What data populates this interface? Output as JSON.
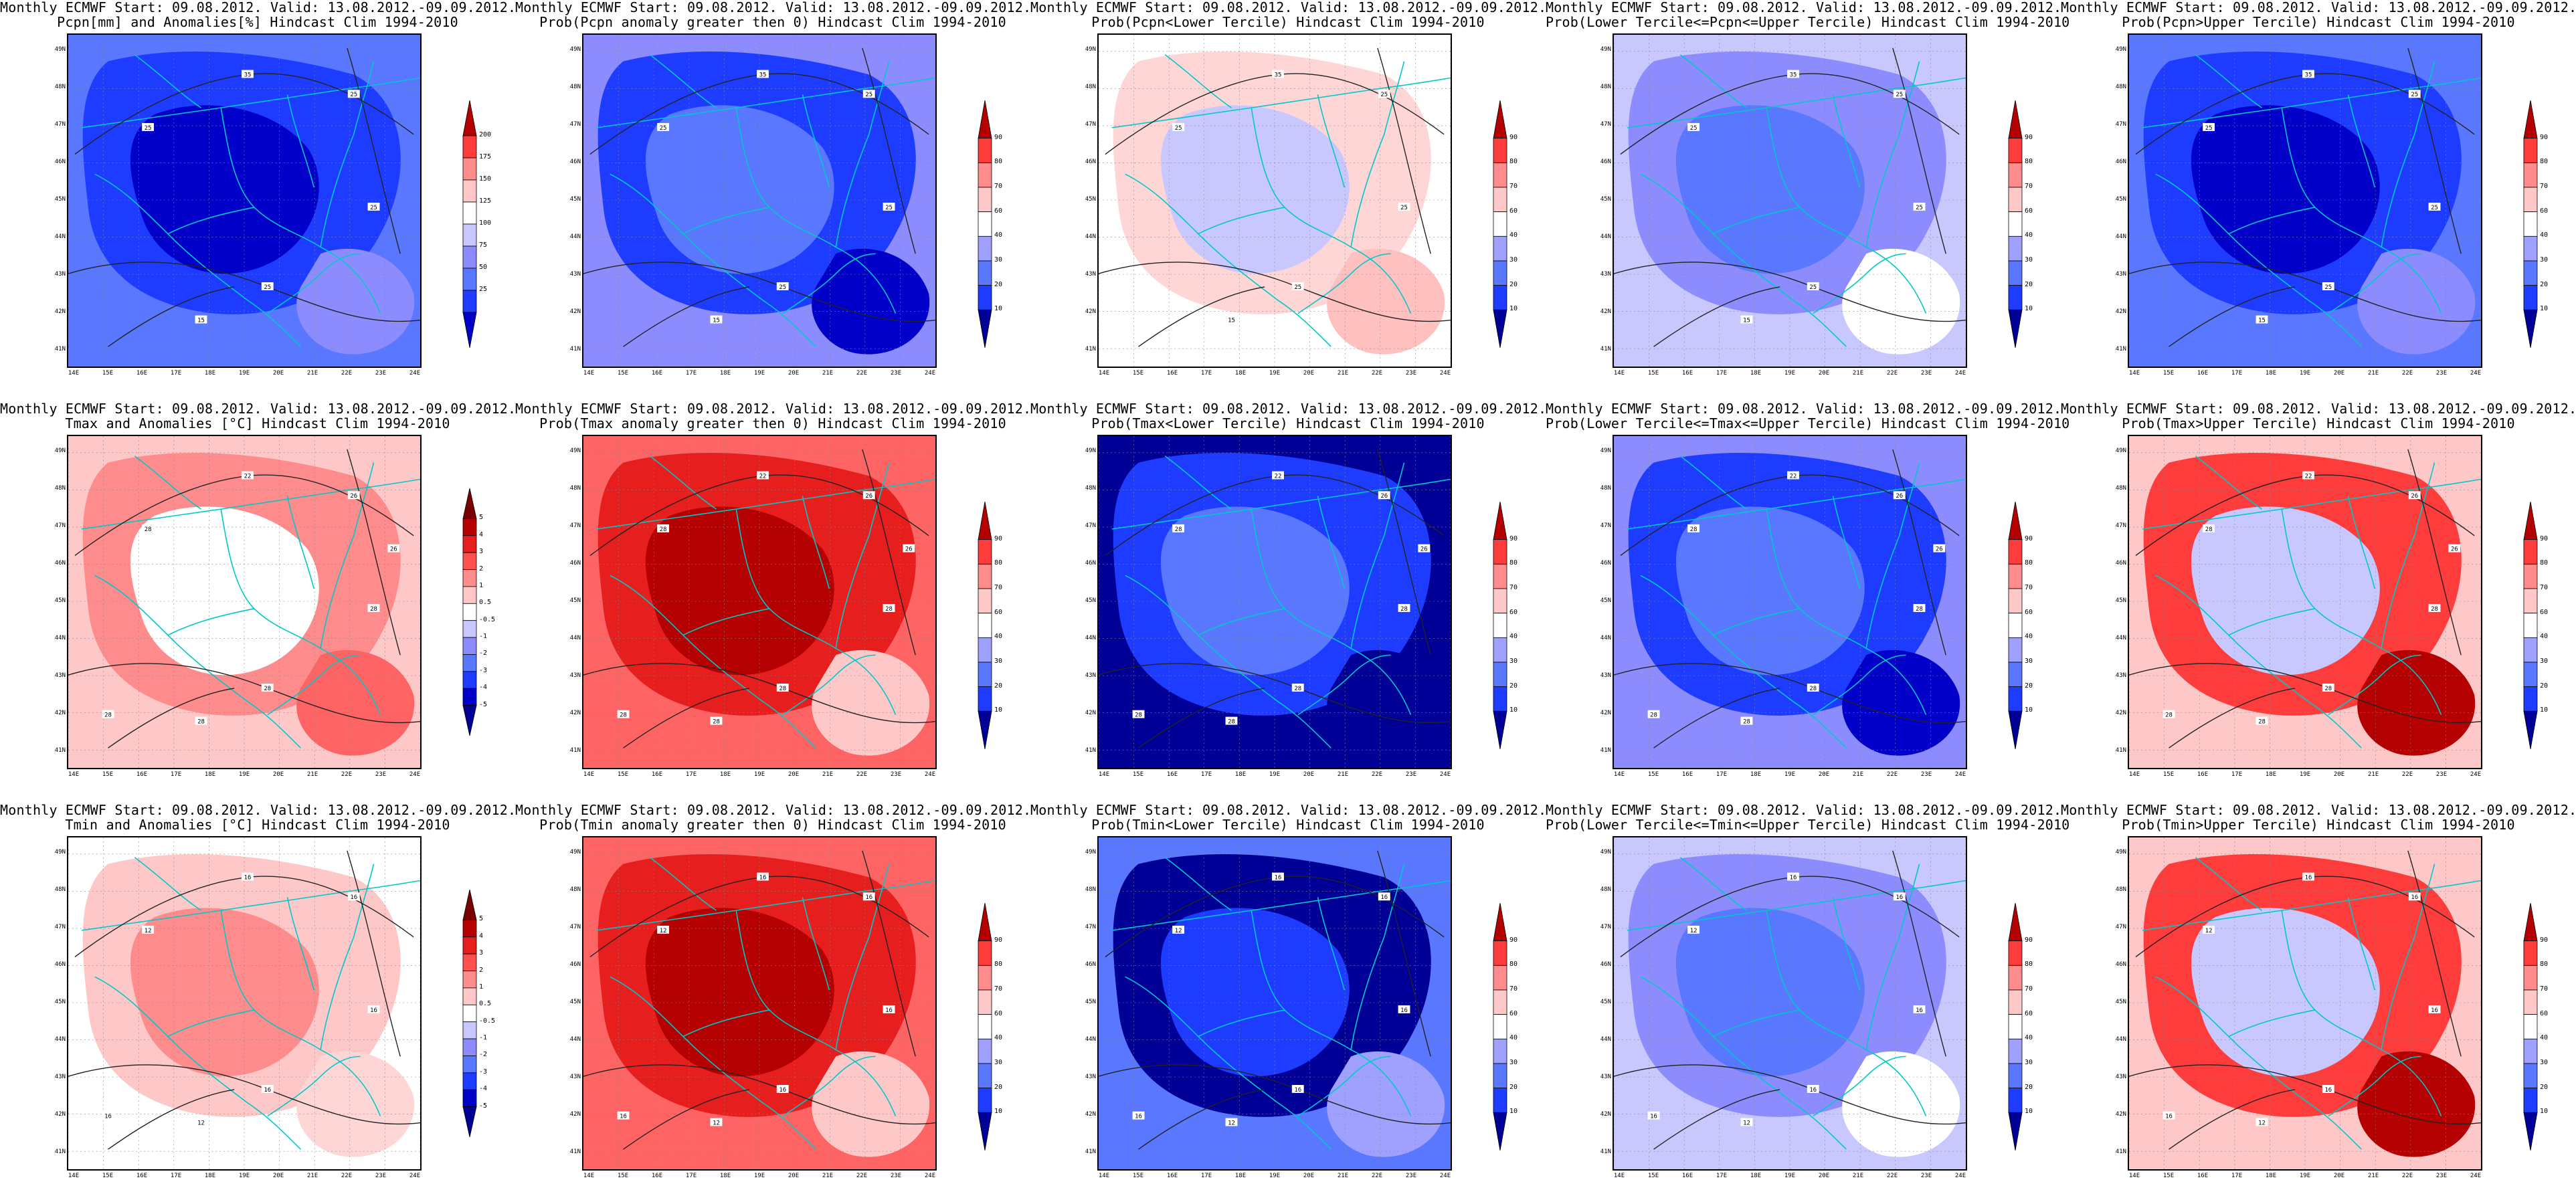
{
  "figure": {
    "header_line": "Monthly ECMWF Start: 09.08.2012. Valid: 13.08.2012.-09.09.2012.",
    "lat_ticks": [
      "49N",
      "48N",
      "47N",
      "46N",
      "45N",
      "44N",
      "43N",
      "42N",
      "41N"
    ],
    "lon_ticks": [
      "14E",
      "15E",
      "16E",
      "17E",
      "18E",
      "19E",
      "20E",
      "21E",
      "22E",
      "23E",
      "24E"
    ]
  },
  "colorbars": {
    "pcpn_amount": {
      "labels": [
        "25",
        "50",
        "75",
        "100",
        "125",
        "150",
        "175",
        "200"
      ],
      "colors": [
        "#0000c8",
        "#1e3cff",
        "#5a78ff",
        "#8c8cff",
        "#c8c8ff",
        "#ffffff",
        "#ffc8c8",
        "#ff8c8c",
        "#ff3c3c",
        "#b40000"
      ]
    },
    "anomaly_degC": {
      "labels": [
        "-5",
        "-4",
        "-3",
        "-2",
        "-1",
        "-0.5",
        "0.5",
        "1",
        "2",
        "3",
        "4",
        "5"
      ],
      "colors": [
        "#000096",
        "#0000c8",
        "#1e3cff",
        "#5a78ff",
        "#8c8cff",
        "#c8c8ff",
        "#ffffff",
        "#ffc8c8",
        "#ff8c8c",
        "#ff5050",
        "#e61e1e",
        "#b40000",
        "#780000"
      ]
    },
    "probability": {
      "labels": [
        "10",
        "20",
        "30",
        "40",
        "60",
        "70",
        "80",
        "90"
      ],
      "colors": [
        "#000096",
        "#1e3cff",
        "#5a78ff",
        "#a0a0ff",
        "#ffffff",
        "#ffc8c8",
        "#ff8c8c",
        "#ff3c3c",
        "#b40000"
      ]
    }
  },
  "panels": [
    {
      "subtitle": "Pcpn[mm] and Anomalies[%] Hindcast Clim 1994-2010",
      "cbar": "pcpn_amount",
      "scheme": "blue_deep",
      "contour_labels": [
        "35",
        "25",
        "25",
        "25",
        "25",
        "15"
      ]
    },
    {
      "subtitle": "Prob(Pcpn anomaly greater then 0) Hindcast Clim 1994-2010",
      "cbar": "probability",
      "scheme": "blue_prob",
      "contour_labels": [
        "35",
        "25",
        "25",
        "25",
        "25",
        "15"
      ]
    },
    {
      "subtitle": "Prob(Pcpn<Lower Tercile) Hindcast Clim 1994-2010",
      "cbar": "probability",
      "scheme": "white_pink",
      "contour_labels": [
        "35",
        "25",
        "25",
        "25",
        "25",
        "15"
      ]
    },
    {
      "subtitle": "Prob(Lower Tercile<=Pcpn<=Upper Tercile) Hindcast Clim 1994-2010",
      "cbar": "probability",
      "scheme": "blue_light",
      "contour_labels": [
        "35",
        "25",
        "25",
        "25",
        "25",
        "15"
      ]
    },
    {
      "subtitle": "Prob(Pcpn>Upper Tercile) Hindcast Clim 1994-2010",
      "cbar": "probability",
      "scheme": "blue_deep",
      "contour_labels": [
        "35",
        "25",
        "25",
        "25",
        "25",
        "15"
      ]
    },
    {
      "subtitle": "Tmax and Anomalies [°C] Hindcast Clim 1994-2010",
      "cbar": "anomaly_degC",
      "scheme": "red_light",
      "contour_labels": [
        "22",
        "28",
        "26",
        "28",
        "28",
        "28",
        "28",
        "26"
      ]
    },
    {
      "subtitle": "Prob(Tmax anomaly greater then 0) Hindcast Clim 1994-2010",
      "cbar": "probability",
      "scheme": "red_deep",
      "contour_labels": [
        "22",
        "28",
        "26",
        "28",
        "28",
        "28",
        "28",
        "26"
      ]
    },
    {
      "subtitle": "Prob(Tmax<Lower Tercile) Hindcast Clim 1994-2010",
      "cbar": "probability",
      "scheme": "navy",
      "contour_labels": [
        "22",
        "28",
        "26",
        "28",
        "28",
        "28",
        "28",
        "26"
      ]
    },
    {
      "subtitle": "Prob(Lower Tercile<=Tmax<=Upper Tercile) Hindcast Clim 1994-2010",
      "cbar": "probability",
      "scheme": "blue_prob",
      "contour_labels": [
        "22",
        "28",
        "26",
        "28",
        "28",
        "28",
        "28",
        "26"
      ]
    },
    {
      "subtitle": "Prob(Tmax>Upper Tercile) Hindcast Clim 1994-2010",
      "cbar": "probability",
      "scheme": "red_mixed",
      "contour_labels": [
        "22",
        "28",
        "26",
        "28",
        "28",
        "28",
        "28",
        "26"
      ]
    },
    {
      "subtitle": "Tmin and Anomalies [°C] Hindcast Clim 1994-2010",
      "cbar": "anomaly_degC",
      "scheme": "pink_light",
      "contour_labels": [
        "16",
        "12",
        "16",
        "16",
        "16",
        "12",
        "16"
      ]
    },
    {
      "subtitle": "Prob(Tmin anomaly greater then 0) Hindcast Clim 1994-2010",
      "cbar": "probability",
      "scheme": "red_deep",
      "contour_labels": [
        "16",
        "12",
        "16",
        "16",
        "16",
        "12",
        "16"
      ]
    },
    {
      "subtitle": "Prob(Tmin<Lower Tercile) Hindcast Clim 1994-2010",
      "cbar": "probability",
      "scheme": "navy_mixed",
      "contour_labels": [
        "16",
        "12",
        "16",
        "16",
        "16",
        "12",
        "16"
      ]
    },
    {
      "subtitle": "Prob(Lower Tercile<=Tmin<=Upper Tercile) Hindcast Clim 1994-2010",
      "cbar": "probability",
      "scheme": "blue_light",
      "contour_labels": [
        "16",
        "12",
        "16",
        "16",
        "16",
        "12",
        "16"
      ]
    },
    {
      "subtitle": "Prob(Tmin>Upper Tercile) Hindcast Clim 1994-2010",
      "cbar": "probability",
      "scheme": "red_mixed",
      "contour_labels": [
        "16",
        "12",
        "16",
        "16",
        "16",
        "12",
        "16"
      ]
    }
  ]
}
